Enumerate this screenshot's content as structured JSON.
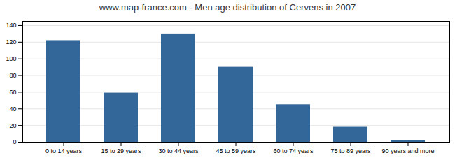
{
  "chart_data": {
    "type": "bar",
    "title": "www.map-france.com - Men age distribution of Cervens in 2007",
    "categories": [
      "0 to 14 years",
      "15 to 29 years",
      "30 to 44 years",
      "45 to 59 years",
      "60 to 74 years",
      "75 to 89 years",
      "90 years and more"
    ],
    "values": [
      122,
      59,
      130,
      90,
      45,
      18,
      2
    ],
    "color": "#336699",
    "ylim": [
      0,
      145
    ],
    "yticks": [
      0,
      20,
      40,
      60,
      80,
      100,
      120,
      140
    ],
    "grid": true
  }
}
